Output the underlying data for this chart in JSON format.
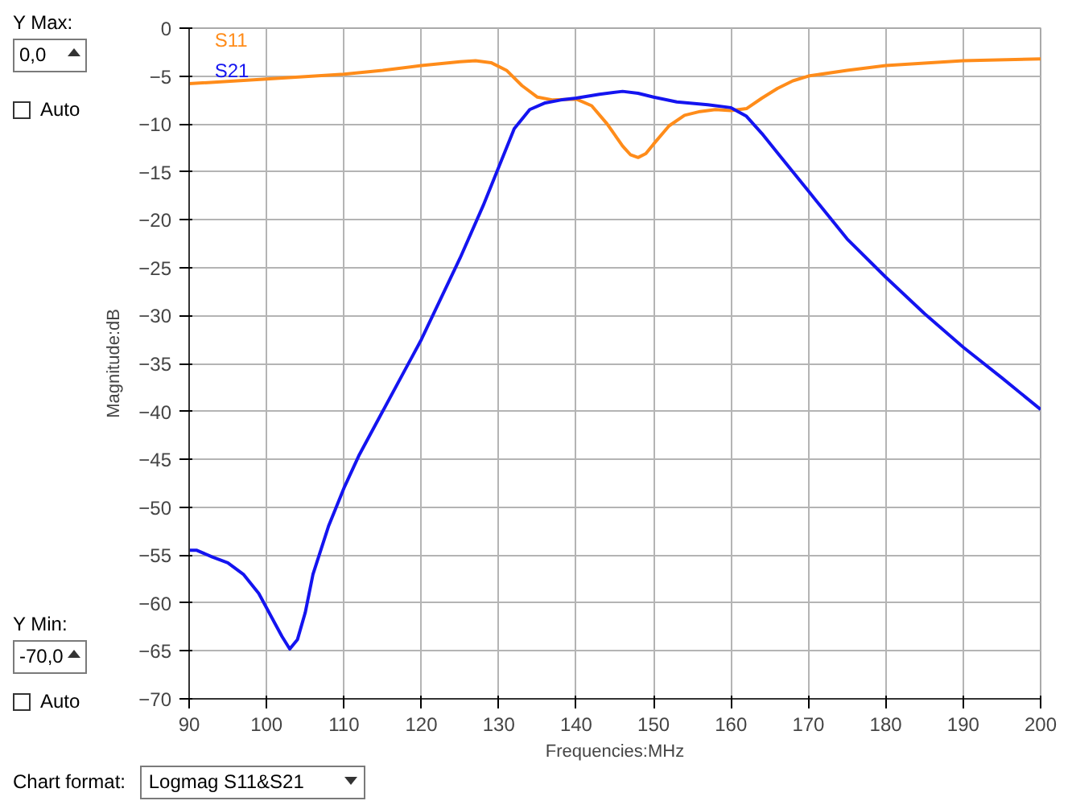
{
  "chart_data": {
    "type": "line",
    "xlabel": "Frequencies:MHz",
    "ylabel": "Magnitude:dB",
    "xlim": [
      90,
      200
    ],
    "xticks": [
      90,
      100,
      110,
      120,
      130,
      140,
      150,
      160,
      170,
      180,
      190,
      200
    ],
    "ylim": [
      -70,
      0
    ],
    "yticks": [
      0,
      -5,
      -10,
      -15,
      -20,
      -25,
      -30,
      -35,
      -40,
      -45,
      -50,
      -55,
      -60,
      -65,
      -70
    ],
    "grid": true,
    "legend": "top left",
    "annotations": [
      "Y Max:",
      "0,0",
      "Auto",
      "Y Min:",
      "-70,0",
      "Auto",
      "Chart format:",
      "Logmag S11&S21"
    ],
    "series": [
      {
        "name": "S11",
        "color": "#ff8c1a",
        "x": [
          90,
          100,
          110,
          115,
          120,
          125,
          127,
          129,
          131,
          133,
          135,
          137,
          140,
          142,
          144,
          146,
          147,
          148,
          149,
          150,
          152,
          154,
          156,
          158,
          160,
          162,
          164,
          166,
          168,
          170,
          175,
          180,
          190,
          200
        ],
        "values": [
          -5.8,
          -5.3,
          -4.8,
          -4.4,
          -3.9,
          -3.5,
          -3.4,
          -3.6,
          -4.4,
          -6,
          -7.2,
          -7.5,
          -7.4,
          -8.1,
          -10,
          -12.3,
          -13.2,
          -13.5,
          -13.1,
          -12.1,
          -10.2,
          -9.1,
          -8.7,
          -8.5,
          -8.6,
          -8.4,
          -7.3,
          -6.3,
          -5.5,
          -5,
          -4.4,
          -3.9,
          -3.4,
          -3.2
        ]
      },
      {
        "name": "S21",
        "color": "#1414f0",
        "x": [
          90,
          91,
          93,
          95,
          97,
          99,
          101,
          102,
          103,
          104,
          105,
          106,
          108,
          110,
          112,
          115,
          120,
          125,
          128,
          130,
          132,
          134,
          136,
          138,
          140,
          143,
          146,
          148,
          150,
          153,
          157,
          160,
          162,
          164,
          166,
          168,
          170,
          175,
          180,
          185,
          190,
          195,
          200
        ],
        "values": [
          -54.5,
          -54.5,
          -55.2,
          -55.8,
          -57,
          -59,
          -62,
          -63.5,
          -64.8,
          -63.8,
          -61,
          -57,
          -52,
          -48,
          -44.5,
          -40,
          -32.5,
          -24,
          -18.5,
          -14.5,
          -10.5,
          -8.5,
          -7.8,
          -7.5,
          -7.3,
          -6.9,
          -6.6,
          -6.8,
          -7.2,
          -7.7,
          -8,
          -8.3,
          -9.2,
          -11,
          -13,
          -15,
          -17,
          -22,
          -26,
          -29.8,
          -33.3,
          -36.5,
          -39.8
        ]
      }
    ]
  }
}
